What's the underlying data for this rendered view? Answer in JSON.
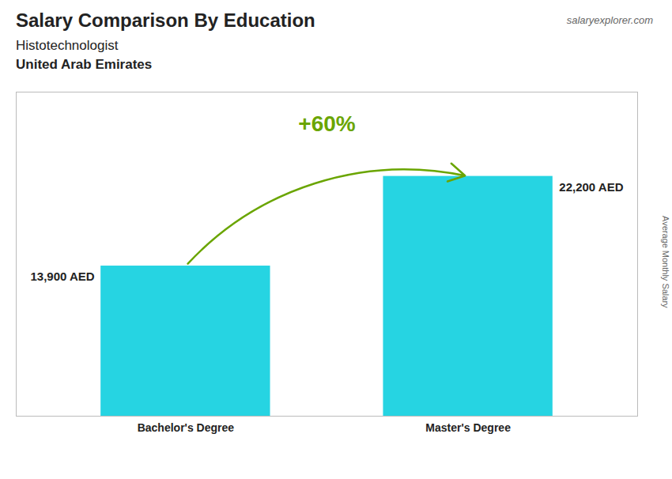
{
  "chart_data": {
    "type": "bar",
    "title": "Salary Comparison By Education",
    "subtitle": "Histotechnologist",
    "annotations": [
      "United Arab Emirates",
      "salaryexplorer.com",
      "+60%"
    ],
    "ylabel": "Average Monthly Salary",
    "categories": [
      "Bachelor's Degree",
      "Master's Degree"
    ],
    "values": [
      13900,
      22200
    ],
    "value_labels": [
      "13,900 AED",
      "22,200 AED"
    ],
    "data_labels": true,
    "color": "#00ccdd",
    "ylim": [
      0,
      30000
    ],
    "tick_labels": "x",
    "grid": false
  }
}
